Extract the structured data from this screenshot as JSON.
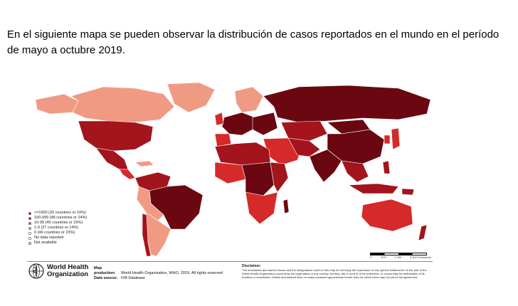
{
  "heading": "En el siguiente mapa se pueden observar la distribución de casos reportados en el mundo en el período de mayo a octubre 2019.",
  "colors": {
    "very_high": "#6b0710",
    "high": "#a3141c",
    "medium": "#d6292a",
    "low": "#f09a84",
    "zero": "#ffffff",
    "no_data": "#ffffff",
    "not_available": "#b0b0b0"
  },
  "legend": [
    {
      "label": ">=1000 (20 countries or 10%)",
      "color": "#6b0710"
    },
    {
      "label": "100-999 (48 countries or 24%)",
      "color": "#a3141c"
    },
    {
      "label": "10-99 (45 countries or 23%)",
      "color": "#d6292a"
    },
    {
      "label": "1-9 (27 countries or 14%)",
      "color": "#f09a84"
    },
    {
      "label": "0 (46 countries or 23%)",
      "color": "#ffffff"
    },
    {
      "label": "No data reported",
      "color": "#ffffff"
    },
    {
      "label": "Not available",
      "color": "#b0b0b0"
    }
  ],
  "scale": {
    "labels": [
      "0",
      "875",
      "1,750",
      "3,500 Kilometers"
    ]
  },
  "who": {
    "line1": "World Health",
    "line2": "Organization",
    "logo_icon": "who-emblem-icon"
  },
  "production": {
    "label1": "Map production:",
    "value1": "World Health Organization, WHO, 2019. All rights reserved",
    "label2": "Data source:",
    "value2": "IVB Database"
  },
  "disclaimer": {
    "title": "Disclaimer:",
    "text": "The boundaries and names shown and the designations used on this map do not imply the expression of any opinion whatsoever on the part of the World Health Organization concerning the legal status of any country, territory, city or area or of its authorities, or concerning the delimitation of its frontiers or boundaries. Dotted and dashed lines on maps represent approximate border lines for which there may not yet be full agreement."
  }
}
